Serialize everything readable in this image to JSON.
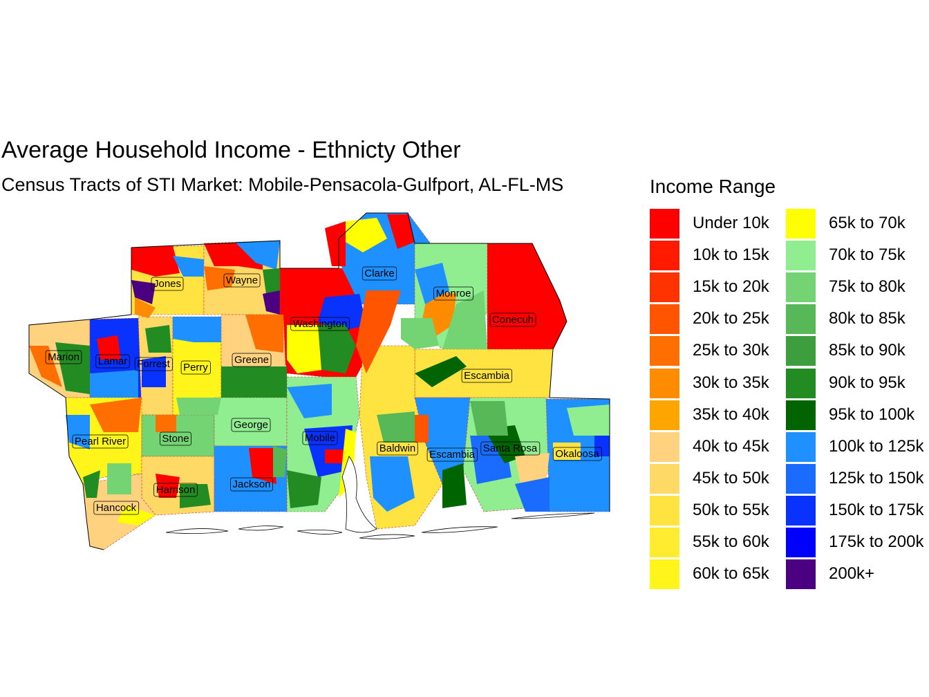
{
  "title": "Average Household Income - Ethnicty Other",
  "subtitle": "Census Tracts of STI Market: Mobile-Pensacola-Gulfport, AL-FL-MS",
  "legend": {
    "title": "Income Range",
    "items": [
      {
        "label": "Under 10k",
        "color": "#FF0000"
      },
      {
        "label": "10k to 15k",
        "color": "#FF1A00"
      },
      {
        "label": "15k to 20k",
        "color": "#FF3300"
      },
      {
        "label": "20k to 25k",
        "color": "#FF5500"
      },
      {
        "label": "25k to 30k",
        "color": "#FF6E00"
      },
      {
        "label": "30k to 35k",
        "color": "#FF8C00"
      },
      {
        "label": "35k to 40k",
        "color": "#FFA500"
      },
      {
        "label": "40k to 45k",
        "color": "#FFD27F"
      },
      {
        "label": "45k to 50k",
        "color": "#FFD966"
      },
      {
        "label": "50k to 55k",
        "color": "#FFE340"
      },
      {
        "label": "55k to 60k",
        "color": "#FFEC30"
      },
      {
        "label": "60k to 65k",
        "color": "#FFF51A"
      },
      {
        "label": "65k to 70k",
        "color": "#FFFF00"
      },
      {
        "label": "70k to 75k",
        "color": "#90EE90"
      },
      {
        "label": "75k to 80k",
        "color": "#74D474"
      },
      {
        "label": "80k to 85k",
        "color": "#57B857"
      },
      {
        "label": "85k to 90k",
        "color": "#3C9E3C"
      },
      {
        "label": "90k to 95k",
        "color": "#228B22"
      },
      {
        "label": "95k to 100k",
        "color": "#006400"
      },
      {
        "label": "100k to 125k",
        "color": "#1E90FF"
      },
      {
        "label": "125k to 150k",
        "color": "#1A6CFF"
      },
      {
        "label": "150k to 175k",
        "color": "#0A32FF"
      },
      {
        "label": "175k to 200k",
        "color": "#0000FF"
      },
      {
        "label": "200k+",
        "color": "#4B0082"
      }
    ]
  },
  "counties": [
    {
      "name": "Jones"
    },
    {
      "name": "Wayne"
    },
    {
      "name": "Clarke"
    },
    {
      "name": "Monroe"
    },
    {
      "name": "Conecuh"
    },
    {
      "name": "Washington"
    },
    {
      "name": "Marion"
    },
    {
      "name": "Lamar"
    },
    {
      "name": "Forrest"
    },
    {
      "name": "Perry"
    },
    {
      "name": "Greene"
    },
    {
      "name": "Escambia"
    },
    {
      "name": "Pearl River"
    },
    {
      "name": "Stone"
    },
    {
      "name": "George"
    },
    {
      "name": "Mobile"
    },
    {
      "name": "Baldwin"
    },
    {
      "name": "Escambia"
    },
    {
      "name": "Santa Rosa"
    },
    {
      "name": "Okaloosa"
    },
    {
      "name": "Harrison"
    },
    {
      "name": "Jackson"
    },
    {
      "name": "Hancock"
    }
  ]
}
